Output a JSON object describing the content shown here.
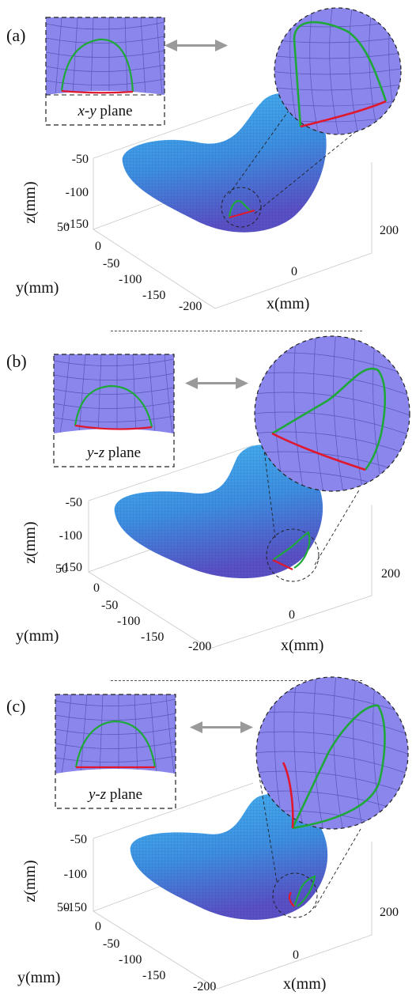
{
  "panels": [
    {
      "label": "(a)",
      "inset_plane": "x-y",
      "inset_plane_suffix": " plane",
      "z_axis_label": "z(mm)",
      "y_axis_label": "y(mm)",
      "x_axis_label": "x(mm)",
      "z_ticks": [
        "-50",
        "-100",
        "-150"
      ],
      "y_ticks": [
        "50",
        "0",
        "-50",
        "-100",
        "-150"
      ],
      "x_ticks": [
        "-200",
        "0",
        "200"
      ]
    },
    {
      "label": "(b)",
      "inset_plane": "y-z",
      "inset_plane_suffix": " plane",
      "z_axis_label": "z(mm)",
      "y_axis_label": "y(mm)",
      "x_axis_label": "x(mm)",
      "z_ticks": [
        "-50",
        "-100",
        "-150"
      ],
      "y_ticks": [
        "50",
        "0",
        "-50",
        "-100",
        "-150"
      ],
      "x_ticks": [
        "-200",
        "0",
        "200"
      ]
    },
    {
      "label": "(c)",
      "inset_plane": "y-z",
      "inset_plane_suffix": " plane",
      "z_axis_label": "z(mm)",
      "y_axis_label": "y(mm)",
      "x_axis_label": "x(mm)",
      "z_ticks": [
        "-50",
        "-100",
        "-150"
      ],
      "y_ticks": [
        "50",
        "0",
        "-50",
        "-100",
        "-150"
      ],
      "x_ticks": [
        "-200",
        "0",
        "200"
      ]
    }
  ],
  "colors": {
    "surface_light": "#3fb0ec",
    "surface_dark": "#5a55c8",
    "inset_fill": "#8a86ec",
    "green_path": "#1fa83a",
    "red_path": "#e0182e",
    "arrow": "#9a9a9a"
  }
}
